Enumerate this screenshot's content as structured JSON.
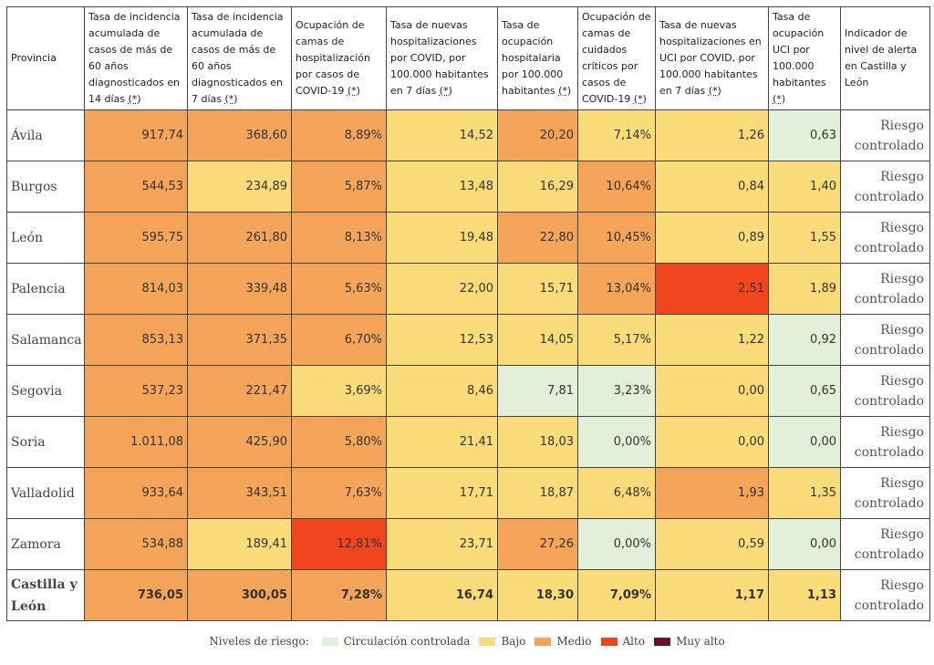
{
  "chart_data": {
    "type": "table",
    "headers": [
      "Provincia",
      "Tasa de incidencia acumulada de casos de más de 60 años diagnosticados en 14 días",
      "Tasa de incidencia acumulada de casos de más de 60 años diagnosticados en 7 días",
      "Ocupación de camas de hospitalización por casos de COVID-19",
      "Tasa de nuevas hospitalizaciones por COVID, por 100.000 habitantes en 7 días",
      "Tasa de ocupación hospitalaria por 100.000 habitantes",
      "Ocupación de camas de cuidados críticos por casos de COVID-19",
      "Tasa de nuevas hospitalizaciones en UCI por COVID, por 100.000 habitantes en 7 días",
      "Tasa de ocupación UCI por 100.000 habitantes",
      "Indicador de nivel de alerta en Castilla y León"
    ],
    "header_note_mark": "(*)",
    "rows": [
      {
        "province": "Ávila",
        "values": [
          "917,74",
          "368,60",
          "8,89%",
          "14,52",
          "20,20",
          "7,14%",
          "1,26",
          "0,63"
        ],
        "levels": [
          2,
          2,
          2,
          1,
          2,
          1,
          1,
          0
        ],
        "indicator": "Riesgo controlado"
      },
      {
        "province": "Burgos",
        "values": [
          "544,53",
          "234,89",
          "5,87%",
          "13,48",
          "16,29",
          "10,64%",
          "0,84",
          "1,40"
        ],
        "levels": [
          2,
          1,
          2,
          1,
          1,
          2,
          1,
          1
        ],
        "indicator": "Riesgo controlado"
      },
      {
        "province": "León",
        "values": [
          "595,75",
          "261,80",
          "8,13%",
          "19,48",
          "22,80",
          "10,45%",
          "0,89",
          "1,55"
        ],
        "levels": [
          2,
          2,
          2,
          1,
          2,
          2,
          1,
          1
        ],
        "indicator": "Riesgo controlado"
      },
      {
        "province": "Palencia",
        "values": [
          "814,03",
          "339,48",
          "5,63%",
          "22,00",
          "15,71",
          "13,04%",
          "2,51",
          "1,89"
        ],
        "levels": [
          2,
          2,
          2,
          1,
          1,
          2,
          3,
          1
        ],
        "indicator": "Riesgo controlado"
      },
      {
        "province": "Salamanca",
        "values": [
          "853,13",
          "371,35",
          "6,70%",
          "12,53",
          "14,05",
          "5,17%",
          "1,22",
          "0,92"
        ],
        "levels": [
          2,
          2,
          2,
          1,
          1,
          1,
          1,
          0
        ],
        "indicator": "Riesgo controlado"
      },
      {
        "province": "Segovia",
        "values": [
          "537,23",
          "221,47",
          "3,69%",
          "8,46",
          "7,81",
          "3,23%",
          "0,00",
          "0,65"
        ],
        "levels": [
          2,
          2,
          1,
          1,
          0,
          0,
          1,
          0
        ],
        "indicator": "Riesgo controlado"
      },
      {
        "province": "Soria",
        "values": [
          "1.011,08",
          "425,90",
          "5,80%",
          "21,41",
          "18,03",
          "0,00%",
          "0,00",
          "0,00"
        ],
        "levels": [
          2,
          2,
          2,
          1,
          1,
          0,
          1,
          0
        ],
        "indicator": "Riesgo controlado"
      },
      {
        "province": "Valladolid",
        "values": [
          "933,64",
          "343,51",
          "7,63%",
          "17,71",
          "18,87",
          "6,48%",
          "1,93",
          "1,35"
        ],
        "levels": [
          2,
          2,
          2,
          1,
          1,
          1,
          2,
          1
        ],
        "indicator": "Riesgo controlado"
      },
      {
        "province": "Zamora",
        "values": [
          "534,88",
          "189,41",
          "12,81%",
          "23,71",
          "27,26",
          "0,00%",
          "0,59",
          "0,00"
        ],
        "levels": [
          2,
          1,
          3,
          1,
          2,
          0,
          1,
          0
        ],
        "indicator": "Riesgo controlado"
      },
      {
        "province": "Castilla y León",
        "values": [
          "736,05",
          "300,05",
          "7,28%",
          "16,74",
          "18,30",
          "7,09%",
          "1,17",
          "1,13"
        ],
        "levels": [
          2,
          2,
          2,
          1,
          1,
          1,
          1,
          1
        ],
        "indicator": "Riesgo controlado",
        "total": true
      }
    ],
    "legend": {
      "title": "Niveles de riesgo:",
      "items": [
        {
          "label": "Circulación controlada",
          "color": "#e2f0d9"
        },
        {
          "label": "Bajo",
          "color": "#fbdc7a"
        },
        {
          "label": "Medio",
          "color": "#f5a55a"
        },
        {
          "label": "Alto",
          "color": "#f0461f"
        },
        {
          "label": "Muy alto",
          "color": "#6b0f2a"
        }
      ]
    }
  }
}
